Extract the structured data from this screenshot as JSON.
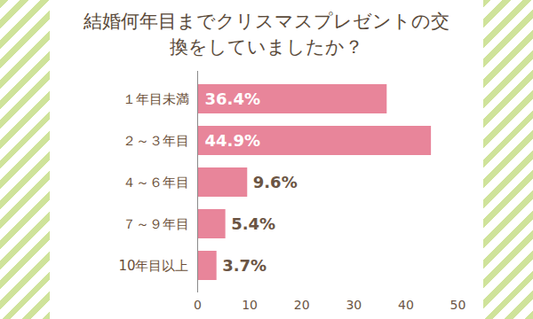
{
  "chart_data": {
    "type": "bar",
    "title": "結婚何年目までクリスマスプレゼントの交換をしていましたか？",
    "orientation": "horizontal",
    "categories": [
      "１年目未満",
      "２～３年目",
      "４～６年目",
      "７～９年目",
      "10年目以上"
    ],
    "values": [
      36.4,
      44.9,
      9.6,
      5.4,
      3.7
    ],
    "value_labels": [
      "36.4%",
      "44.9%",
      "9.6%",
      "5.4%",
      "3.7%"
    ],
    "data_labels": true,
    "color": "#e8859a",
    "xlim": [
      0,
      50
    ],
    "xticks": [
      0,
      10,
      20,
      30,
      40,
      50
    ],
    "grid": false
  }
}
